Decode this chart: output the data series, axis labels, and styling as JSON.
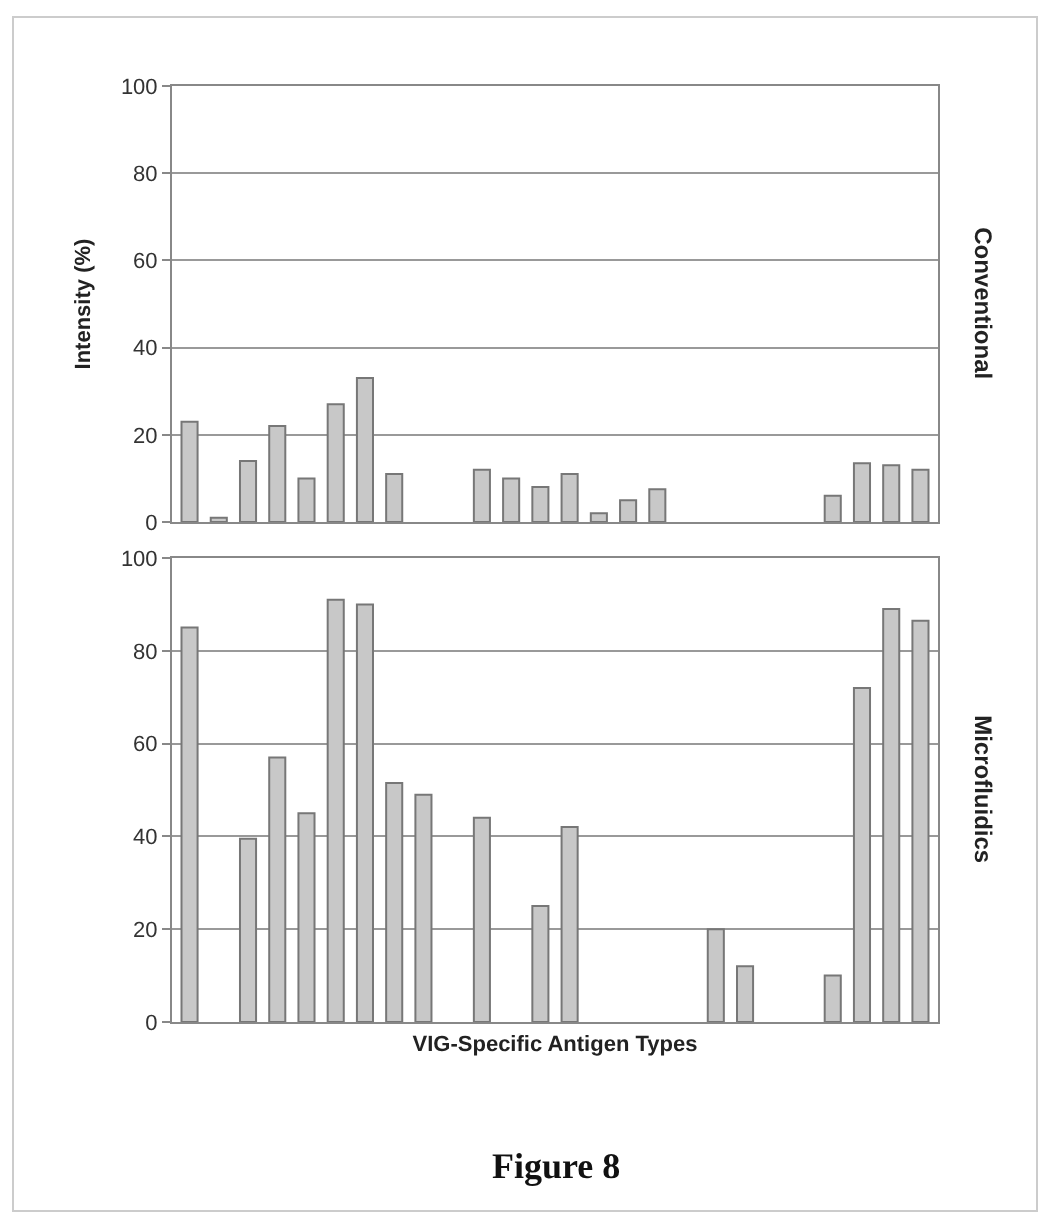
{
  "chart_data": [
    {
      "type": "bar",
      "ylabel": "Intensity (%)",
      "y2label": "Conventional",
      "categories": [
        null,
        null,
        null,
        null,
        null,
        null,
        null,
        null,
        null,
        null,
        null,
        null,
        null,
        null,
        null,
        null,
        null,
        null,
        null,
        null,
        null,
        null,
        null,
        null,
        null,
        null
      ],
      "series": [
        {
          "color": "#c8c8c8",
          "values": [
            23,
            1,
            14,
            22,
            10,
            27,
            33,
            11,
            null,
            null,
            12,
            10,
            8,
            11,
            2,
            5,
            7.5,
            null,
            null,
            null,
            null,
            null,
            6,
            13.5,
            13,
            12
          ]
        }
      ],
      "ylim": [
        0,
        100
      ],
      "yticks": [
        0,
        20,
        40,
        60,
        80,
        100
      ],
      "grid": "y"
    },
    {
      "type": "bar",
      "xlabel": "VIG-Specific Antigen Types",
      "y2label": "Microfluidics",
      "categories": [
        null,
        null,
        null,
        null,
        null,
        null,
        null,
        null,
        null,
        null,
        null,
        null,
        null,
        null,
        null,
        null,
        null,
        null,
        null,
        null,
        null,
        null,
        null,
        null,
        null,
        null
      ],
      "series": [
        {
          "color": "#c8c8c8",
          "values": [
            85,
            null,
            39.5,
            57,
            45,
            91,
            90,
            51.5,
            49,
            null,
            44,
            null,
            25,
            42,
            null,
            null,
            null,
            null,
            20,
            12,
            null,
            null,
            10,
            72,
            89,
            86.5
          ]
        }
      ],
      "ylim": [
        0,
        100
      ],
      "yticks": [
        0,
        20,
        40,
        60,
        80,
        100
      ],
      "grid": "y",
      "annotations": [
        "Figure 8"
      ]
    }
  ]
}
